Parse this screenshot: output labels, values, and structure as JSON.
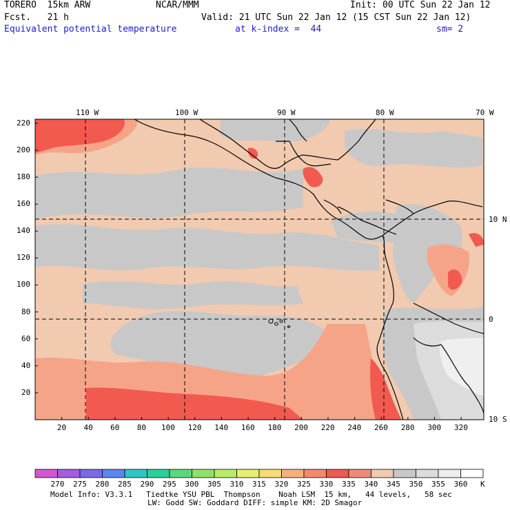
{
  "header": {
    "model": "TORERO  15km ARW",
    "center": "NCAR/MMM",
    "init": "Init: 00 UTC Sun 22 Jan 12",
    "fcst": "Fcst.   21 h",
    "valid": "Valid: 21 UTC Sun 22 Jan 12 (15 CST Sun 22 Jan 12)",
    "field": "Equivalent potential temperature",
    "kindex": "at k-index =  44",
    "smooth": "sm= 2"
  },
  "map": {
    "lon_labels": [
      "110 W",
      "100 W",
      "90 W",
      "80 W",
      "70 W"
    ],
    "lat_labels": [
      "10 N",
      "0",
      "10 S"
    ],
    "y_ticks": [
      "220",
      "200",
      "180",
      "160",
      "140",
      "120",
      "100",
      "80",
      "60",
      "40",
      "20"
    ],
    "x_ticks": [
      "20",
      "40",
      "60",
      "80",
      "100",
      "120",
      "140",
      "160",
      "180",
      "200",
      "220",
      "240",
      "260",
      "280",
      "300",
      "320"
    ],
    "colors": {
      "ocean_base": "#f1cab0",
      "grey": "#c8c8c8",
      "light_grey": "#dedede",
      "white_grey": "#efefef",
      "salmon": "#f6a488",
      "red": "#f25a50",
      "coast": "#000000",
      "grid": "#000000"
    }
  },
  "colorbar": {
    "labels": [
      "270",
      "275",
      "280",
      "285",
      "290",
      "295",
      "300",
      "305",
      "310",
      "315",
      "320",
      "325",
      "330",
      "335",
      "340",
      "345",
      "350",
      "355",
      "360"
    ],
    "unit": "K",
    "colors": [
      "#d455d4",
      "#a45ce0",
      "#7a6ae8",
      "#5a86ee",
      "#2cc6c8",
      "#26d29a",
      "#5ad87a",
      "#8ee266",
      "#b8ec66",
      "#e4f070",
      "#f6dc72",
      "#f6b07c",
      "#f4886a",
      "#ee5a50",
      "#f08a74",
      "#f1cab0",
      "#c8c8c8",
      "#dcdcdc",
      "#eeeeee",
      "#ffffff"
    ]
  },
  "footer": {
    "line1": "Model Info: V3.3.1   Tiedtke YSU PBL  Thompson    Noah LSM  15 km,   44 levels,   58 sec",
    "line2": "LW: Godd SW: Goddard DIFF: simple KM: 2D Smagor"
  }
}
